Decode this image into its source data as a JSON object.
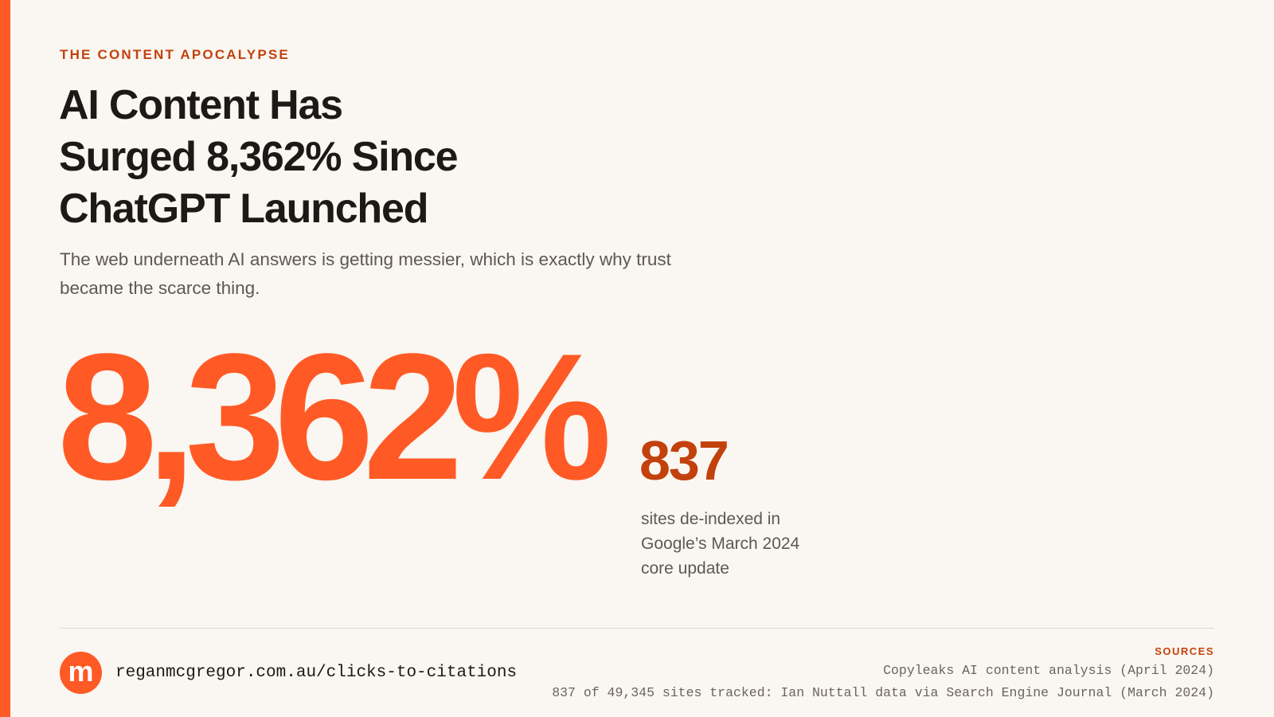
{
  "header": {
    "eyebrow": "THE CONTENT APOCALYPSE",
    "title_lines": [
      "AI Content Has",
      "Surged 8,362% Since",
      "ChatGPT Launched"
    ],
    "subtitle_lines": [
      "The web underneath AI answers is getting messier, which is exactly why trust",
      "became the scarce thing."
    ]
  },
  "stats": {
    "primary": "8,362%",
    "secondary": "837",
    "secondary_caption_lines": [
      "sites de-indexed in",
      "Google’s March 2024",
      "core update"
    ]
  },
  "footer": {
    "logo": "m",
    "url": "reganmcgregor.com.au/clicks-to-citations",
    "sources_label": "SOURCES",
    "sources": [
      "Copyleaks AI content analysis (April 2024)",
      "837 of 49,345 sites tracked: Ian Nuttall data via Search Engine Journal (March 2024)"
    ]
  }
}
